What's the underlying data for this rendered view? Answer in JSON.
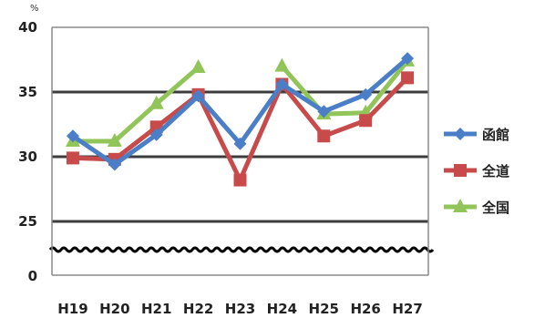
{
  "chart_data": {
    "type": "line",
    "title": "",
    "unit_label": "%",
    "categories": [
      "H19",
      "H20",
      "H21",
      "H22",
      "H23",
      "H24",
      "H25",
      "H26",
      "H27"
    ],
    "ytick_labels": [
      "0",
      "25",
      "30",
      "35",
      "40"
    ],
    "ylim": [
      25,
      40
    ],
    "axis_break": true,
    "grid": true,
    "legend_position": "right",
    "series": [
      {
        "name": "函館",
        "color": "#4a7fc8",
        "marker": "diamond",
        "values": [
          31.6,
          29.4,
          31.7,
          34.7,
          31.0,
          35.6,
          33.5,
          34.8,
          37.6
        ]
      },
      {
        "name": "全道",
        "color": "#c84b4b",
        "marker": "square",
        "values": [
          29.9,
          29.8,
          32.3,
          34.8,
          28.2,
          35.6,
          31.6,
          32.8,
          36.1
        ]
      },
      {
        "name": "全国",
        "color": "#92c559",
        "marker": "triangle",
        "values": [
          31.2,
          31.2,
          34.1,
          36.9,
          null,
          37.0,
          33.3,
          33.4,
          37.4
        ]
      }
    ]
  }
}
